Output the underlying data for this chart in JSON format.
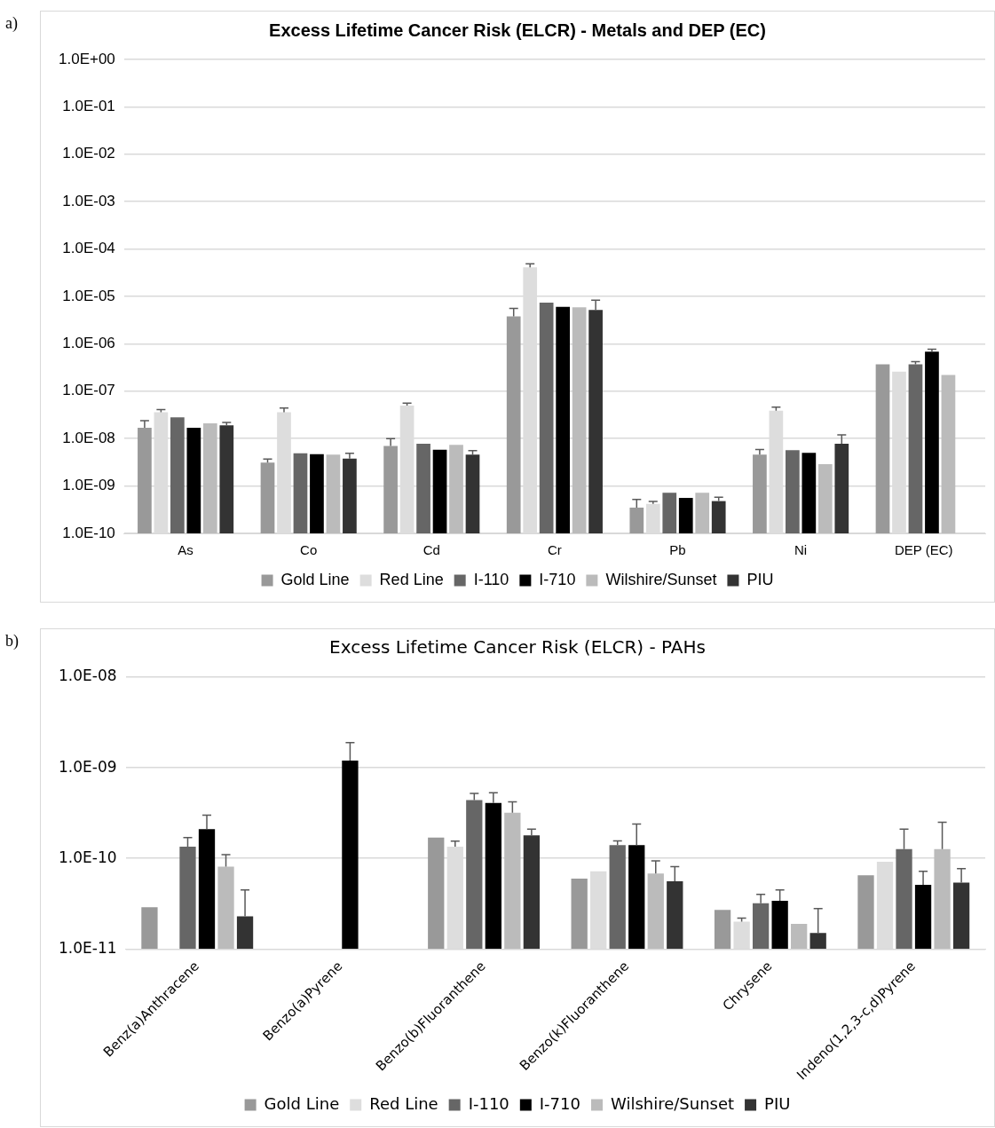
{
  "chart_data": [
    {
      "type": "bar",
      "title": "Excess Lifetime Cancer Risk (ELCR) - Metals and DEP (EC)",
      "annotations": [
        "a)"
      ],
      "categories": [
        "As",
        "Co",
        "Cd",
        "Cr",
        "Pb",
        "Ni",
        "DEP (EC)"
      ],
      "log": true,
      "ylim": [
        1e-10,
        1
      ],
      "yticks": [
        {
          "value": 1e-10,
          "label": "1.0E-10"
        },
        {
          "value": 1e-09,
          "label": "1.0E-09"
        },
        {
          "value": 1e-08,
          "label": "1.0E-08"
        },
        {
          "value": 1e-07,
          "label": "1.0E-07"
        },
        {
          "value": 1e-06,
          "label": "1.0E-06"
        },
        {
          "value": 1e-05,
          "label": "1.0E-05"
        },
        {
          "value": 0.0001,
          "label": "1.0E-04"
        },
        {
          "value": 0.001,
          "label": "1.0E-03"
        },
        {
          "value": 0.01,
          "label": "1.0E-02"
        },
        {
          "value": 0.1,
          "label": "1.0E-01"
        },
        {
          "value": 1,
          "label": "1.0E+00"
        }
      ],
      "grid": "y",
      "legend": "bottom",
      "series": [
        {
          "name": "Gold Line",
          "color": "#999999",
          "values": [
            1.7e-08,
            3.1e-09,
            7e-09,
            3.8e-06,
            3.5e-10,
            4.6e-09,
            3.7e-07
          ],
          "errors": [
            [
              1.7e-08,
              2.4e-08
            ],
            [
              3.1e-09,
              3.7e-09
            ],
            [
              7e-09,
              1e-08
            ],
            [
              3.8e-06,
              5.6e-06
            ],
            [
              3.5e-10,
              5.2e-10
            ],
            [
              4.6e-09,
              5.9e-09
            ],
            null
          ]
        },
        {
          "name": "Red Line",
          "color": "#dddddd",
          "values": [
            3.6e-08,
            3.6e-08,
            5e-08,
            4.1e-05,
            4.2e-10,
            3.9e-08,
            2.6e-07
          ],
          "errors": [
            [
              3.6e-08,
              4.1e-08
            ],
            [
              3.6e-08,
              4.4e-08
            ],
            [
              5e-08,
              5.6e-08
            ],
            [
              4.1e-05,
              4.9e-05
            ],
            [
              4.2e-10,
              4.7e-10
            ],
            [
              3.9e-08,
              4.6e-08
            ],
            null
          ]
        },
        {
          "name": "I-110",
          "color": "#666666",
          "values": [
            2.8e-08,
            4.9e-09,
            7.8e-09,
            7.4e-06,
            7.2e-10,
            5.7e-09,
            3.7e-07
          ],
          "errors": [
            null,
            null,
            null,
            null,
            null,
            null,
            [
              3.7e-07,
              4.2e-07
            ]
          ]
        },
        {
          "name": "I-710",
          "color": "#000000",
          "values": [
            1.7e-08,
            4.7e-09,
            5.8e-09,
            6e-06,
            5.6e-10,
            5e-09,
            6.8e-07
          ],
          "errors": [
            null,
            null,
            null,
            null,
            null,
            null,
            [
              6.8e-07,
              7.7e-07
            ]
          ]
        },
        {
          "name": "Wilshire/Sunset",
          "color": "#bbbbbb",
          "values": [
            2.1e-08,
            4.6e-09,
            7.4e-09,
            5.9e-06,
            7.2e-10,
            2.9e-09,
            2.2e-07
          ]
        },
        {
          "name": "PIU",
          "color": "#333333",
          "values": [
            1.9e-08,
            3.8e-09,
            4.6e-09,
            5.2e-06,
            4.8e-10,
            7.8e-09,
            null
          ],
          "errors": [
            [
              1.9e-08,
              2.2e-08
            ],
            [
              3.8e-09,
              4.9e-09
            ],
            [
              4.6e-09,
              5.6e-09
            ],
            [
              5.2e-06,
              8.3e-06
            ],
            [
              4.8e-10,
              5.8e-10
            ],
            [
              7.8e-09,
              1.2e-08
            ],
            null
          ]
        }
      ]
    },
    {
      "type": "bar",
      "title": "Excess Lifetime Cancer Risk (ELCR) - PAHs",
      "annotations": [
        "b)"
      ],
      "categories": [
        "Benz(a)Anthracene",
        "Benzo(a)Pyrene",
        "Benzo(b)Fluoranthene",
        "Benzo(k)Fluoranthene",
        "Chrysene",
        "Indeno(1,2,3-c,d)Pyrene"
      ],
      "log": true,
      "ylim": [
        1e-11,
        1e-08
      ],
      "yticks": [
        {
          "value": 1e-11,
          "label": "1.0E-11"
        },
        {
          "value": 1e-10,
          "label": "1.0E-10"
        },
        {
          "value": 1e-09,
          "label": "1.0E-09"
        },
        {
          "value": 1e-08,
          "label": "1.0E-08"
        }
      ],
      "grid": "y",
      "legend": "bottom",
      "series": [
        {
          "name": "Gold Line",
          "color": "#999999",
          "values": [
            2.9e-11,
            null,
            1.7e-10,
            6e-11,
            2.7e-11,
            6.5e-11
          ]
        },
        {
          "name": "Red Line",
          "color": "#dddddd",
          "values": [
            null,
            null,
            1.35e-10,
            7.2e-11,
            2e-11,
            9.2e-11
          ],
          "errors": [
            null,
            null,
            [
              1.35e-10,
              1.55e-10
            ],
            null,
            [
              2e-11,
              2.2e-11
            ],
            null
          ]
        },
        {
          "name": "I-110",
          "color": "#666666",
          "values": [
            1.35e-10,
            null,
            4.4e-10,
            1.4e-10,
            3.2e-11,
            1.27e-10
          ],
          "errors": [
            [
              1.35e-10,
              1.7e-10
            ],
            null,
            [
              4.4e-10,
              5.2e-10
            ],
            [
              1.4e-10,
              1.56e-10
            ],
            [
              3.2e-11,
              4e-11
            ],
            [
              1.27e-10,
              2.1e-10
            ]
          ]
        },
        {
          "name": "I-710",
          "color": "#000000",
          "values": [
            2.1e-10,
            1.2e-09,
            4.1e-10,
            1.4e-10,
            3.4e-11,
            5.1e-11
          ],
          "errors": [
            [
              2.1e-10,
              3e-10
            ],
            [
              1.2e-09,
              1.9e-09
            ],
            [
              4.1e-10,
              5.3e-10
            ],
            [
              1.4e-10,
              2.4e-10
            ],
            [
              3.4e-11,
              4.5e-11
            ],
            [
              5.1e-11,
              7.2e-11
            ]
          ]
        },
        {
          "name": "Wilshire/Sunset",
          "color": "#bbbbbb",
          "values": [
            8.1e-11,
            null,
            3.2e-10,
            6.8e-11,
            1.9e-11,
            1.27e-10
          ],
          "errors": [
            [
              8.1e-11,
              1.1e-10
            ],
            null,
            [
              3.2e-10,
              4.2e-10
            ],
            [
              6.8e-11,
              9.4e-11
            ],
            null,
            [
              1.27e-10,
              2.5e-10
            ]
          ]
        },
        {
          "name": "PIU",
          "color": "#333333",
          "values": [
            2.3e-11,
            null,
            1.8e-10,
            5.6e-11,
            1.5e-11,
            5.4e-11
          ],
          "errors": [
            [
              2.3e-11,
              4.5e-11
            ],
            null,
            [
              1.8e-10,
              2.1e-10
            ],
            [
              5.6e-11,
              8.1e-11
            ],
            [
              1.5e-11,
              2.8e-11
            ],
            [
              5.4e-11,
              7.7e-11
            ]
          ]
        }
      ]
    }
  ]
}
